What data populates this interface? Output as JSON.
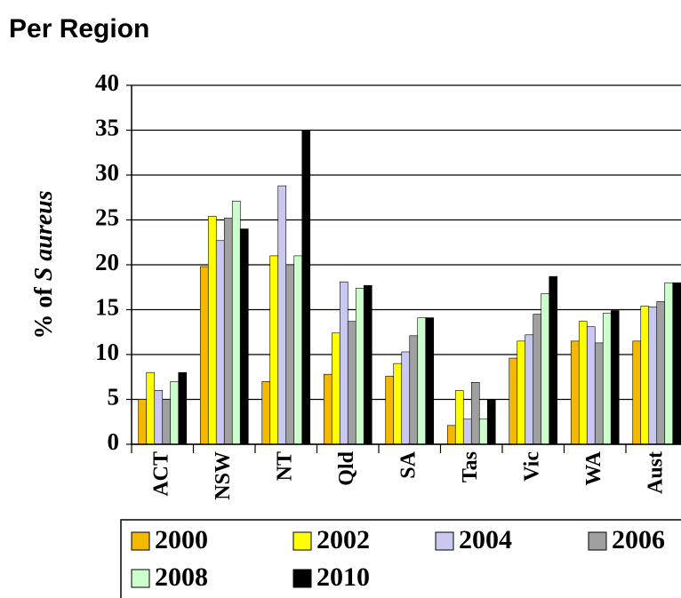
{
  "chart_data": {
    "type": "bar",
    "title": "Per Region",
    "y_label": [
      "% of",
      "S aureus"
    ],
    "categories": [
      "ACT",
      "NSW",
      "NT",
      "Qld",
      "SA",
      "Tas",
      "Vic",
      "WA",
      "Aust"
    ],
    "series": [
      {
        "name": "2000",
        "color": "#f5b800",
        "values": [
          5,
          19.8,
          7,
          7.8,
          7.6,
          2.1,
          9.6,
          11.5,
          11.5
        ]
      },
      {
        "name": "2002",
        "color": "#ffff00",
        "values": [
          8,
          25.4,
          21,
          12.4,
          9,
          6,
          11.5,
          13.7,
          15.4
        ]
      },
      {
        "name": "2004",
        "color": "#c8c8f0",
        "values": [
          6,
          22.7,
          28.8,
          18.1,
          10.3,
          2.8,
          12.2,
          13.1,
          15.3
        ]
      },
      {
        "name": "2006",
        "color": "#a0a0a0",
        "values": [
          5,
          25.2,
          20,
          13.7,
          12.1,
          6.9,
          14.5,
          11.3,
          15.9
        ]
      },
      {
        "name": "2008",
        "color": "#ccffcc",
        "values": [
          7,
          27.1,
          21,
          17.4,
          14.1,
          2.8,
          16.8,
          14.6,
          18
        ]
      },
      {
        "name": "2010",
        "color": "#000000",
        "values": [
          8,
          24,
          35,
          17.7,
          14.1,
          5,
          18.7,
          14.9,
          18
        ]
      }
    ],
    "ylim": [
      0,
      40
    ],
    "yticks": [
      0,
      5,
      10,
      15,
      20,
      25,
      30,
      35,
      40
    ],
    "grid": true
  }
}
